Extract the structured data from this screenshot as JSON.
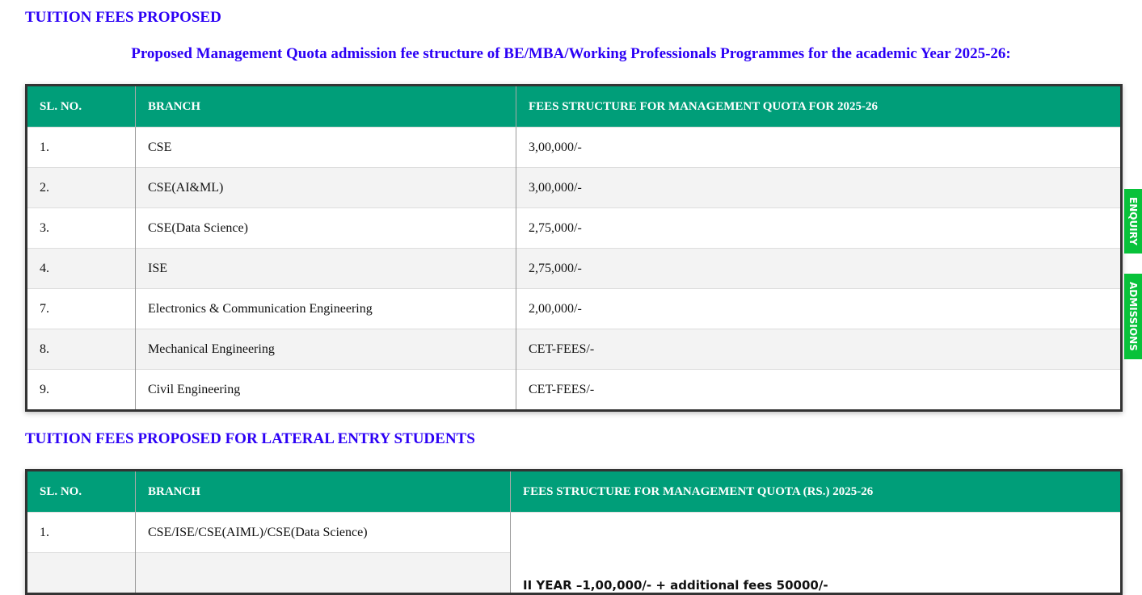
{
  "title1": "TUITION FEES PROPOSED",
  "subtitle": "Proposed Management Quota admission fee structure of BE/MBA/Working Professionals Programmes for the academic Year 2025-26:",
  "table1": {
    "headers": [
      "SL. NO.",
      "BRANCH",
      "FEES STRUCTURE FOR MANAGEMENT QUOTA FOR 2025-26"
    ],
    "rows": [
      [
        "1.",
        "CSE",
        "3,00,000/-"
      ],
      [
        "2.",
        "CSE(AI&ML)",
        "3,00,000/-"
      ],
      [
        "3.",
        "CSE(Data Science)",
        "2,75,000/-"
      ],
      [
        "4.",
        "ISE",
        "2,75,000/-"
      ],
      [
        "7.",
        "Electronics & Communication Engineering",
        "2,00,000/-"
      ],
      [
        "8.",
        "Mechanical Engineering",
        "CET-FEES/-"
      ],
      [
        "9.",
        "Civil Engineering",
        "CET-FEES/-"
      ]
    ]
  },
  "title2": "TUITION FEES PROPOSED FOR LATERAL ENTRY STUDENTS",
  "table2": {
    "headers": [
      "SL. NO.",
      "BRANCH",
      "FEES STRUCTURE FOR MANAGEMENT QUOTA (RS.) 2025-26"
    ],
    "rows": [
      [
        "1.",
        "CSE/ISE/CSE(AIML)/CSE(Data Science)",
        "II YEAR –1,00,000/- + additional fees 50000/-"
      ]
    ]
  },
  "side": {
    "enquiry": "ENQUIRY",
    "admissions": "ADMISSIONS"
  },
  "colors": {
    "header": "#009e79",
    "heading": "#2b00f5",
    "side_tab": "#08c23a"
  }
}
